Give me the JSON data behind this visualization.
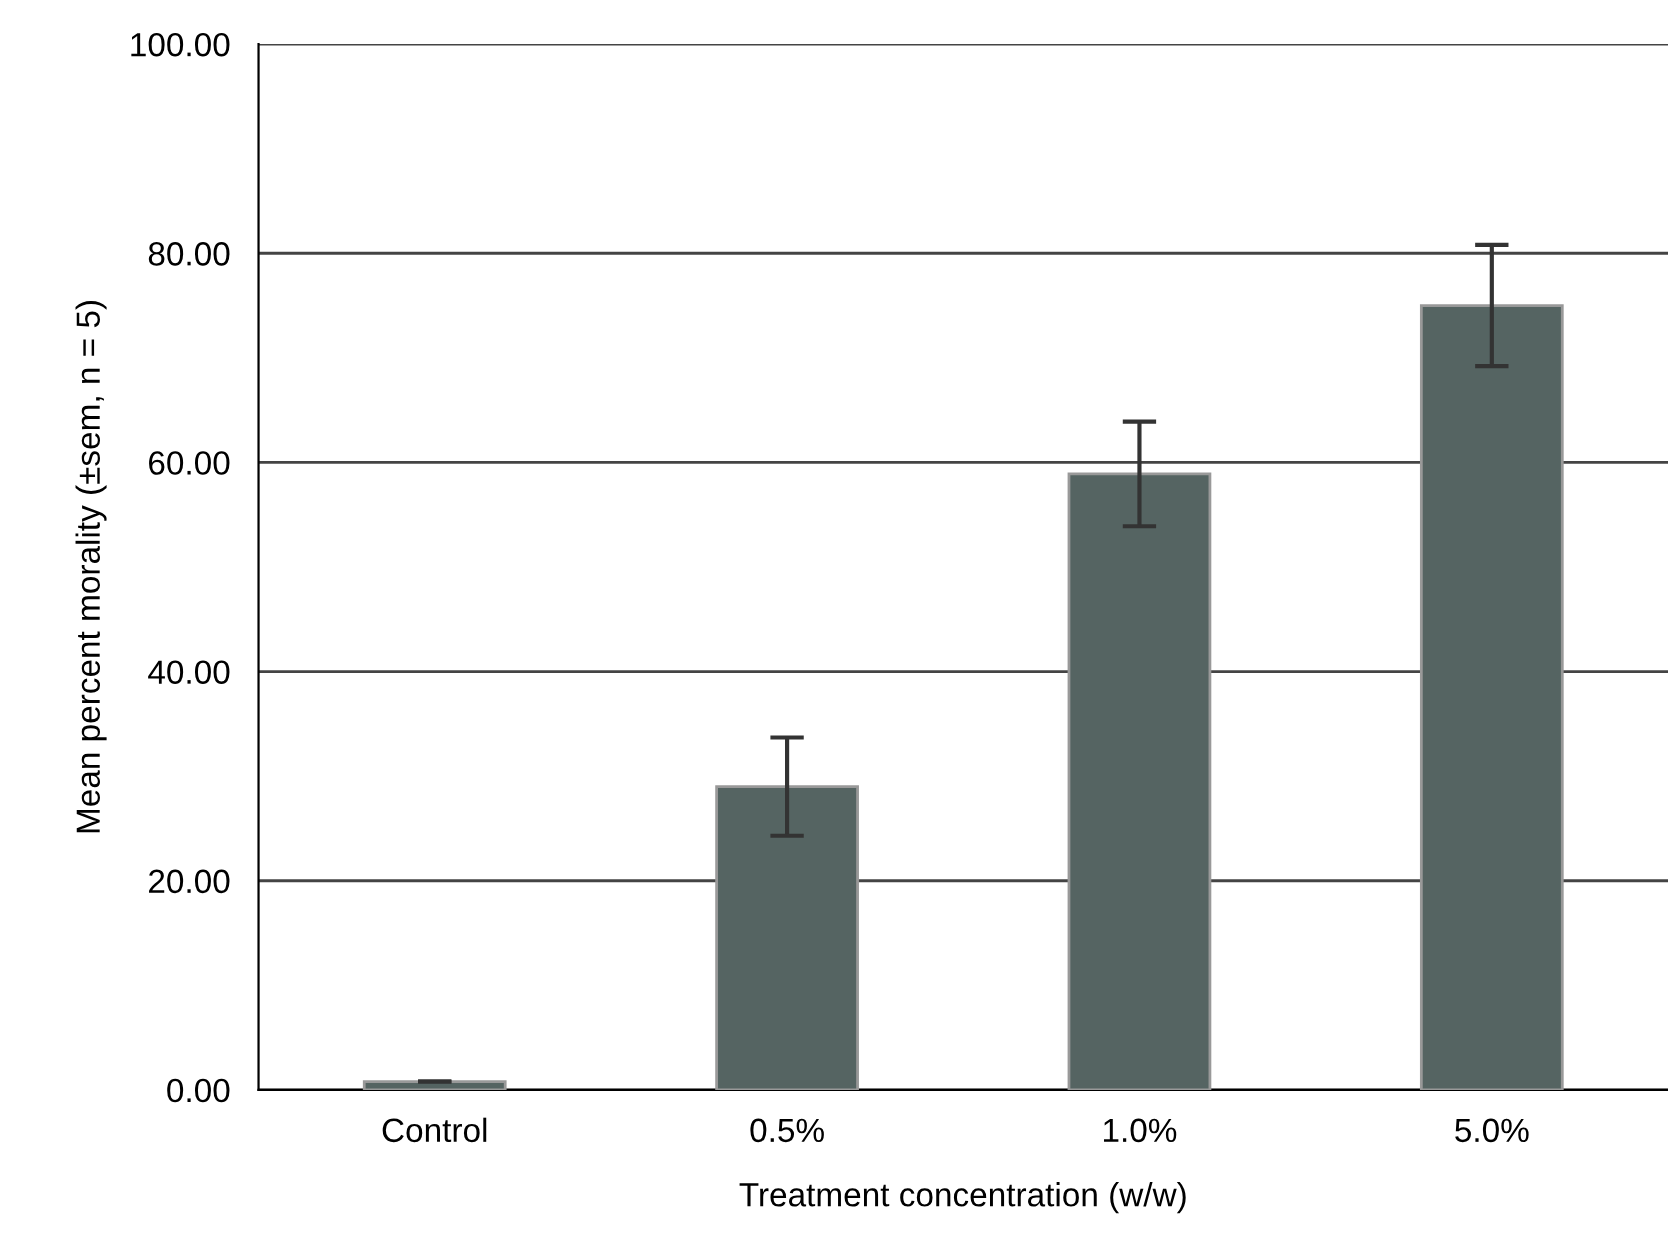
{
  "chart_data": {
    "type": "bar",
    "xlabel": "Treatment concentration (w/w)",
    "ylabel": "Mean percent morality (±sem, n = 5)",
    "categories": [
      "Control",
      "0.5%",
      "1.0%",
      "5.0%"
    ],
    "values": [
      0.8,
      29.0,
      58.9,
      75.0
    ],
    "errors": [
      null,
      4.7,
      5.0,
      5.8
    ],
    "color": "#556462",
    "ylim": [
      0,
      100
    ],
    "yticks": [
      {
        "value": 0,
        "label": "0.00"
      },
      {
        "value": 20,
        "label": "20.00"
      },
      {
        "value": 40,
        "label": "40.00"
      },
      {
        "value": 60,
        "label": "60.00"
      },
      {
        "value": 80,
        "label": "80.00"
      },
      {
        "value": 100,
        "label": "100.00"
      }
    ],
    "grid": "y",
    "legend": false
  }
}
